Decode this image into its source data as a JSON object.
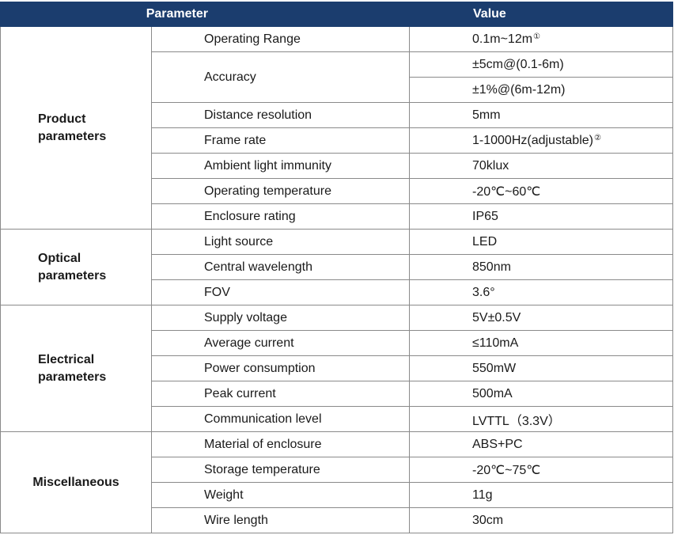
{
  "header": {
    "parameter": "Parameter",
    "value": "Value"
  },
  "groups": [
    {
      "label": "Product\nparameters",
      "rows": [
        {
          "name": "Operating Range",
          "value": "0.1m~12m",
          "footnote": "①"
        },
        {
          "name": "Accuracy",
          "values": [
            "±5cm@(0.1-6m)",
            "±1%@(6m-12m)"
          ]
        },
        {
          "name": "Distance resolution",
          "value": "5mm"
        },
        {
          "name": "Frame rate",
          "value": "1-1000Hz(adjustable)",
          "footnote": "②"
        },
        {
          "name": "Ambient light immunity",
          "value": "70klux"
        },
        {
          "name": "Operating temperature",
          "value": "-20℃~60℃"
        },
        {
          "name": "Enclosure rating",
          "value": "IP65"
        }
      ]
    },
    {
      "label": "Optical\nparameters",
      "rows": [
        {
          "name": "Light source",
          "value": "LED"
        },
        {
          "name": "Central wavelength",
          "value": "850nm"
        },
        {
          "name": "FOV",
          "value": "3.6°"
        }
      ]
    },
    {
      "label": "Electrical\nparameters",
      "rows": [
        {
          "name": "Supply voltage",
          "value": "5V±0.5V"
        },
        {
          "name": "Average current",
          "value": "≤110mA"
        },
        {
          "name": "Power consumption",
          "value": "550mW"
        },
        {
          "name": "Peak current",
          "value": "500mA"
        },
        {
          "name": "Communication level",
          "value": "LVTTL（3.3V）"
        }
      ]
    },
    {
      "label": "Miscellaneous",
      "rows": [
        {
          "name": "Material of enclosure",
          "value": "ABS+PC"
        },
        {
          "name": "Storage temperature",
          "value": "-20℃~75℃"
        },
        {
          "name": "Weight",
          "value": "11g"
        },
        {
          "name": "Wire length",
          "value": "30cm"
        }
      ]
    }
  ]
}
